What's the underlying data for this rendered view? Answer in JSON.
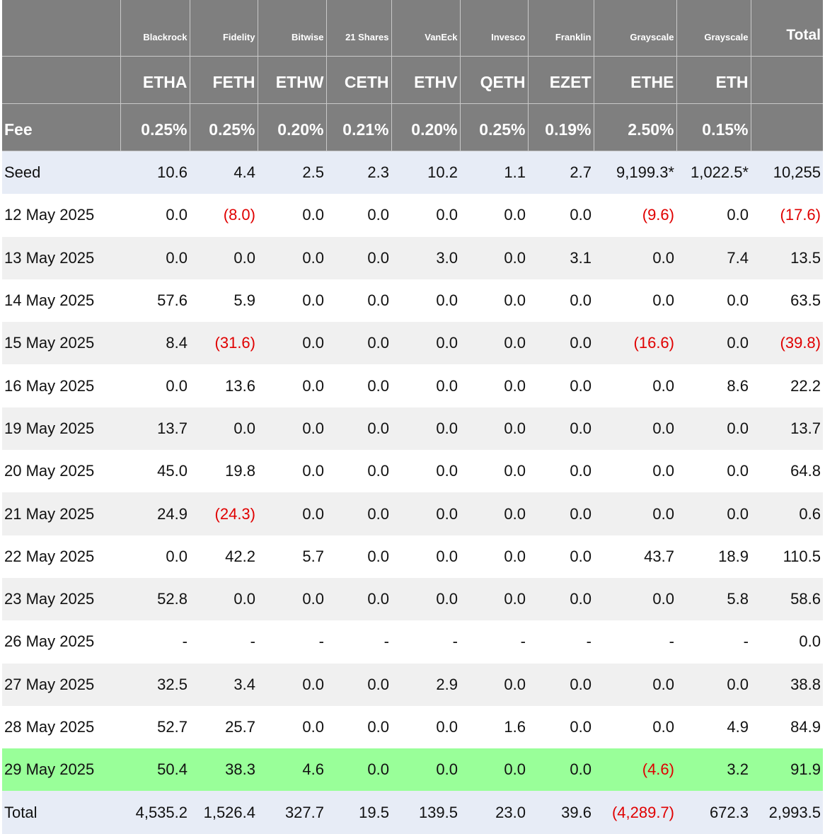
{
  "header": {
    "issuers": [
      "Blackrock",
      "Fidelity",
      "Bitwise",
      "21 Shares",
      "VanEck",
      "Invesco",
      "Franklin",
      "Grayscale",
      "Grayscale"
    ],
    "tickers": [
      "ETHA",
      "FETH",
      "ETHW",
      "CETH",
      "ETHV",
      "QETH",
      "EZET",
      "ETHE",
      "ETH"
    ],
    "fee_label": "Fee",
    "fees": [
      "0.25%",
      "0.25%",
      "0.20%",
      "0.21%",
      "0.20%",
      "0.25%",
      "0.19%",
      "2.50%",
      "0.15%"
    ],
    "total_label": "Total"
  },
  "rows": [
    {
      "label": "Seed",
      "values": [
        "10.6",
        "4.4",
        "2.5",
        "2.3",
        "10.2",
        "1.1",
        "2.7",
        "9,199.3*",
        "1,022.5*",
        "10,255"
      ]
    },
    {
      "label": "12 May 2025",
      "values": [
        "0.0",
        "(8.0)",
        "0.0",
        "0.0",
        "0.0",
        "0.0",
        "0.0",
        "(9.6)",
        "0.0",
        "(17.6)"
      ]
    },
    {
      "label": "13 May 2025",
      "values": [
        "0.0",
        "0.0",
        "0.0",
        "0.0",
        "3.0",
        "0.0",
        "3.1",
        "0.0",
        "7.4",
        "13.5"
      ]
    },
    {
      "label": "14 May 2025",
      "values": [
        "57.6",
        "5.9",
        "0.0",
        "0.0",
        "0.0",
        "0.0",
        "0.0",
        "0.0",
        "0.0",
        "63.5"
      ]
    },
    {
      "label": "15 May 2025",
      "values": [
        "8.4",
        "(31.6)",
        "0.0",
        "0.0",
        "0.0",
        "0.0",
        "0.0",
        "(16.6)",
        "0.0",
        "(39.8)"
      ]
    },
    {
      "label": "16 May 2025",
      "values": [
        "0.0",
        "13.6",
        "0.0",
        "0.0",
        "0.0",
        "0.0",
        "0.0",
        "0.0",
        "8.6",
        "22.2"
      ]
    },
    {
      "label": "19 May 2025",
      "values": [
        "13.7",
        "0.0",
        "0.0",
        "0.0",
        "0.0",
        "0.0",
        "0.0",
        "0.0",
        "0.0",
        "13.7"
      ]
    },
    {
      "label": "20 May 2025",
      "values": [
        "45.0",
        "19.8",
        "0.0",
        "0.0",
        "0.0",
        "0.0",
        "0.0",
        "0.0",
        "0.0",
        "64.8"
      ]
    },
    {
      "label": "21 May 2025",
      "values": [
        "24.9",
        "(24.3)",
        "0.0",
        "0.0",
        "0.0",
        "0.0",
        "0.0",
        "0.0",
        "0.0",
        "0.6"
      ]
    },
    {
      "label": "22 May 2025",
      "values": [
        "0.0",
        "42.2",
        "5.7",
        "0.0",
        "0.0",
        "0.0",
        "0.0",
        "43.7",
        "18.9",
        "110.5"
      ]
    },
    {
      "label": "23 May 2025",
      "values": [
        "52.8",
        "0.0",
        "0.0",
        "0.0",
        "0.0",
        "0.0",
        "0.0",
        "0.0",
        "5.8",
        "58.6"
      ]
    },
    {
      "label": "26 May 2025",
      "values": [
        "-",
        "-",
        "-",
        "-",
        "-",
        "-",
        "-",
        "-",
        "-",
        "0.0"
      ]
    },
    {
      "label": "27 May 2025",
      "values": [
        "32.5",
        "3.4",
        "0.0",
        "0.0",
        "2.9",
        "0.0",
        "0.0",
        "0.0",
        "0.0",
        "38.8"
      ]
    },
    {
      "label": "28 May 2025",
      "values": [
        "52.7",
        "25.7",
        "0.0",
        "0.0",
        "0.0",
        "1.6",
        "0.0",
        "0.0",
        "4.9",
        "84.9"
      ]
    },
    {
      "label": "29 May 2025",
      "values": [
        "50.4",
        "38.3",
        "4.6",
        "0.0",
        "0.0",
        "0.0",
        "0.0",
        "(4.6)",
        "3.2",
        "91.9"
      ]
    },
    {
      "label": "Total",
      "values": [
        "4,535.2",
        "1,526.4",
        "327.7",
        "19.5",
        "139.5",
        "23.0",
        "39.6",
        "(4,289.7)",
        "672.3",
        "2,993.5"
      ]
    }
  ]
}
